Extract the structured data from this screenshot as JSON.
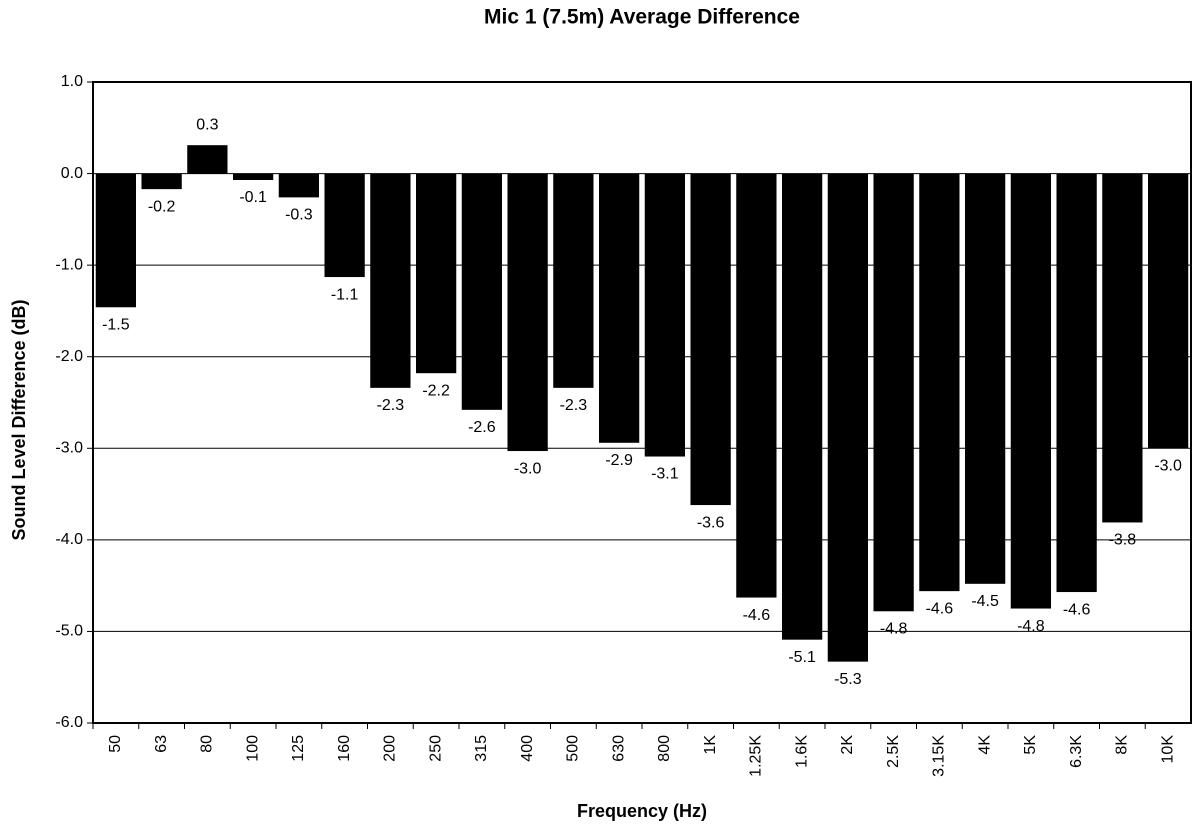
{
  "chart_data": {
    "type": "bar",
    "title": "Mic 1 (7.5m) Average Difference",
    "x_label": "Frequency (Hz)",
    "y_label": "Sound Level Difference (dB)",
    "categories": [
      "50",
      "63",
      "80",
      "100",
      "125",
      "160",
      "200",
      "250",
      "315",
      "400",
      "500",
      "630",
      "800",
      "1K",
      "1.25K",
      "1.6K",
      "2K",
      "2.5K",
      "3.15K",
      "4K",
      "5K",
      "6.3K",
      "8K",
      "10K"
    ],
    "values": [
      -1.46,
      -0.17,
      0.31,
      -0.07,
      -0.26,
      -1.13,
      -2.34,
      -2.18,
      -2.58,
      -3.03,
      -2.34,
      -2.94,
      -3.09,
      -3.62,
      -4.63,
      -5.09,
      -5.33,
      -4.78,
      -4.56,
      -4.48,
      -4.75,
      -4.57,
      -3.81,
      -3.0
    ],
    "value_labels": [
      "-1.5",
      "-0.2",
      "0.3",
      "-0.1",
      "-0.3",
      "-1.1",
      "-2.3",
      "-2.2",
      "-2.6",
      "-3.0",
      "-2.3",
      "-2.9",
      "-3.1",
      "-3.6",
      "-4.6",
      "-5.1",
      "-5.3",
      "-4.8",
      "-4.6",
      "-4.5",
      "-4.8",
      "-4.6",
      "-3.8",
      "-3.0"
    ],
    "color": "#000000",
    "ylim": [
      -6,
      1
    ],
    "yticks": [
      {
        "value": -6,
        "label": "-6.0"
      },
      {
        "value": -5,
        "label": "-5.0"
      },
      {
        "value": -4,
        "label": "-4.0"
      },
      {
        "value": -3,
        "label": "-3.0"
      },
      {
        "value": -2,
        "label": "-2.0"
      },
      {
        "value": -1,
        "label": "-1.0"
      },
      {
        "value": 0,
        "label": "0.0"
      },
      {
        "value": 1,
        "label": "1.0"
      }
    ],
    "grid": true
  }
}
